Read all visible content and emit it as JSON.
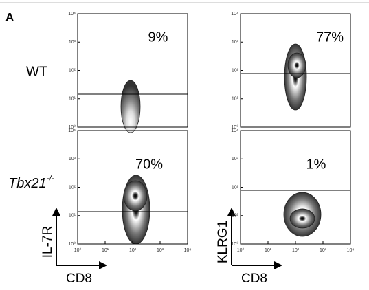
{
  "panel_label": "A",
  "row_labels": [
    {
      "text": "WT"
    },
    {
      "text": "Tbx21",
      "superscript": "-/-"
    }
  ],
  "plots": [
    {
      "percent": "9%"
    },
    {
      "percent": "77%"
    },
    {
      "percent": "70%"
    },
    {
      "percent": "1%"
    }
  ],
  "y_axis_labels": [
    "IL-7R",
    "KLRG1"
  ],
  "x_axis_labels": [
    "CD8",
    "CD8"
  ],
  "tick_labels": [
    "10⁰",
    "10¹",
    "10²",
    "10³",
    "10⁴"
  ]
}
